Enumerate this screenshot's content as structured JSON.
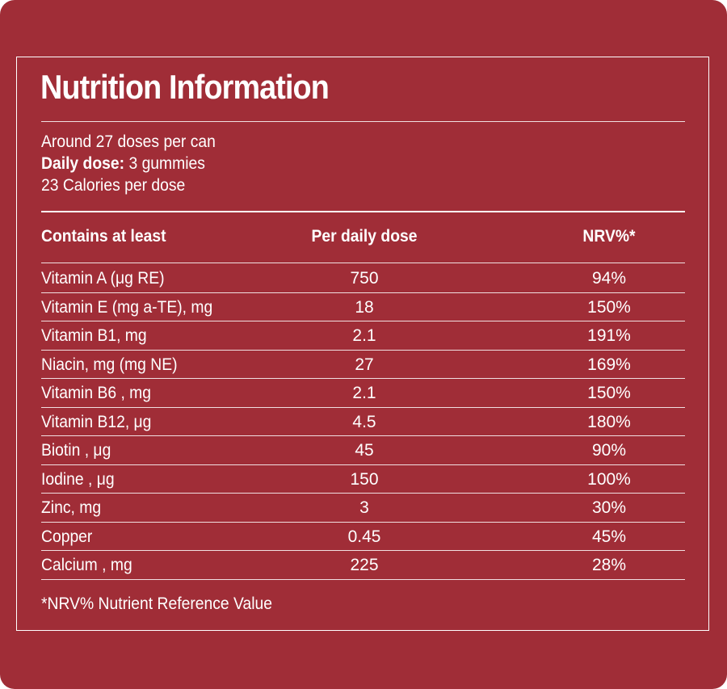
{
  "title": "Nutrition Information",
  "intro": {
    "doses_per_can": "Around 27 doses per can",
    "daily_dose_label": "Daily dose:",
    "daily_dose_value": " 3 gummies",
    "calories": "23 Calories per dose"
  },
  "table": {
    "headers": [
      "Contains at least",
      "Per daily dose",
      "NRV%*"
    ],
    "rows": [
      [
        "Vitamin A (μg RE)",
        "750",
        "94%"
      ],
      [
        "Vitamin E (mg a-TE), mg",
        "18",
        "150%"
      ],
      [
        "Vitamin B1, mg",
        "2.1",
        "191%"
      ],
      [
        "Niacin, mg (mg NE)",
        "27",
        "169%"
      ],
      [
        "Vitamin B6 , mg",
        "2.1",
        "150%"
      ],
      [
        "Vitamin B12, μg",
        "4.5",
        "180%"
      ],
      [
        "Biotin , μg",
        "45",
        "90%"
      ],
      [
        "Iodine , μg",
        "150",
        "100%"
      ],
      [
        "Zinc, mg",
        "3",
        "30%"
      ],
      [
        "Copper",
        "0.45",
        "45%"
      ],
      [
        "Calcium , mg",
        "225",
        "28%"
      ]
    ]
  },
  "footnote": "*NRV% Nutrient Reference Value",
  "colors": {
    "background": "#a02d37",
    "text": "#ffffff"
  }
}
